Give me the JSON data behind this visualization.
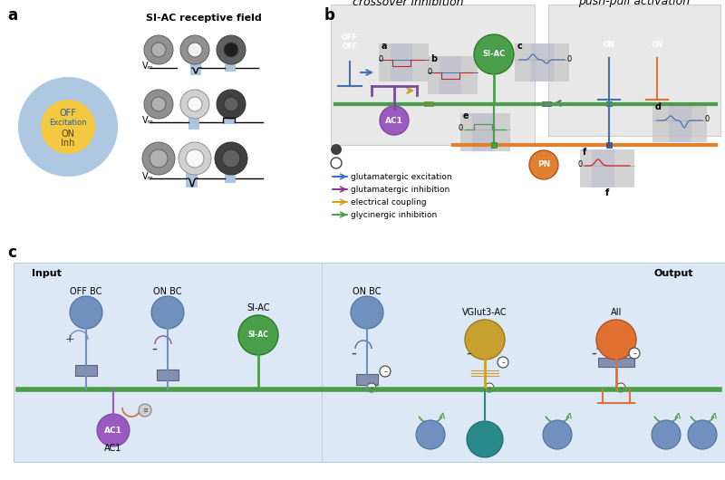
{
  "bg_color": "#f0f0f0",
  "panel_a_label": "a",
  "panel_b_label": "b",
  "panel_c_label": "c",
  "receptive_field_title": "SI-AC receptive field",
  "circle_outer_color": "#a0a0a0",
  "circle_inner_color_on": "#f5c842",
  "circle_label_off": "OFF\nExcitation",
  "circle_label_on": "ON\nInh",
  "outer_circle_color": "#7bb0d4",
  "vm_label": "Vₘ",
  "crossover_title": "crossover inhibition",
  "push_pull_title": "push-pull activation",
  "legend_items": [
    {
      "label": "glutamatergic excitation",
      "color": "#3a6fbf"
    },
    {
      "label": "glutamatergic inhibition",
      "color": "#8b3a8b"
    },
    {
      "label": "electrical coupling",
      "color": "#d4a017"
    },
    {
      "label": "glycinergic inhibition",
      "color": "#4a9e4a"
    }
  ],
  "panel_c_bg": "#d8e8f0",
  "panel_c_labels": [
    "OFF BC",
    "ON BC",
    "SI-AC",
    "ON BC",
    "VGlut3-AC",
    "AII"
  ],
  "input_label": "Input",
  "output_label": "Output",
  "green_line_color": "#4a9e4a",
  "orange_line_color": "#e08030",
  "blue_neuron_color": "#5a7fbf",
  "purple_neuron_color": "#7a4a9a",
  "green_neuron_color": "#4a9e4a",
  "teal_neuron_color": "#2a8a8a",
  "gold_neuron_color": "#c8a030",
  "orange_neuron_color": "#e07030",
  "ac1_color": "#7a4a9a",
  "pn_color": "#e08030",
  "si_ac_color": "#4a9e4a"
}
